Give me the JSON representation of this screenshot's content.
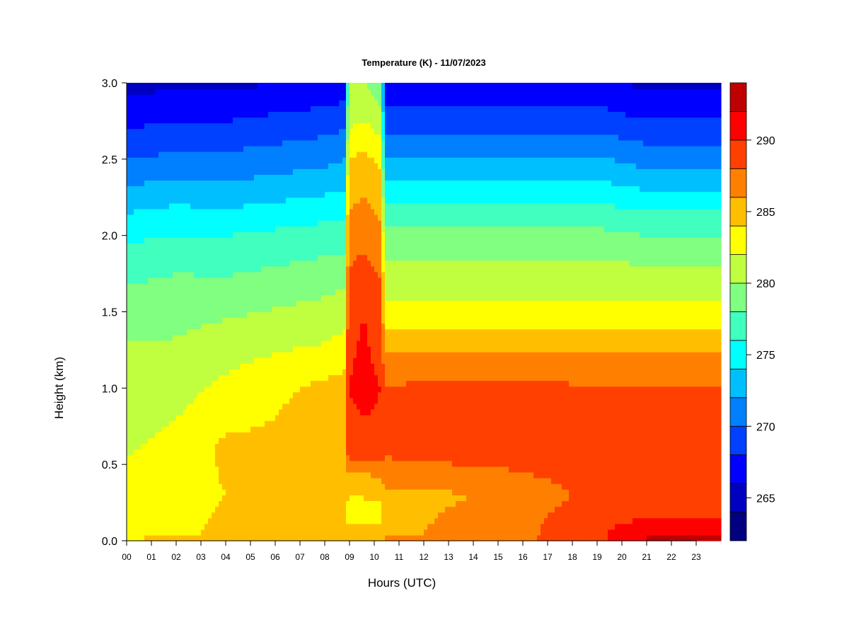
{
  "chart_data": {
    "type": "heatmap",
    "title": "Temperature (K) - 11/07/2023",
    "xlabel": "Hours (UTC)",
    "ylabel": "Height (km)",
    "xlim": [
      0,
      24
    ],
    "ylim": [
      0,
      3
    ],
    "x_ticks": [
      "00",
      "01",
      "02",
      "03",
      "04",
      "05",
      "06",
      "07",
      "08",
      "09",
      "10",
      "11",
      "12",
      "13",
      "14",
      "15",
      "16",
      "17",
      "18",
      "19",
      "20",
      "21",
      "22",
      "23"
    ],
    "y_ticks": [
      "0.0",
      "0.5",
      "1.0",
      "1.5",
      "2.0",
      "2.5",
      "3.0"
    ],
    "colorbar": {
      "range": [
        262,
        294
      ],
      "levels": [
        262,
        264,
        266,
        268,
        270,
        272,
        274,
        276,
        278,
        280,
        282,
        284,
        286,
        288,
        290,
        292,
        294
      ],
      "colors": [
        "#000080",
        "#0000bf",
        "#0000ff",
        "#0040ff",
        "#0080ff",
        "#00bfff",
        "#00ffff",
        "#40ffbf",
        "#80ff80",
        "#bfff40",
        "#ffff00",
        "#ffbf00",
        "#ff8000",
        "#ff4000",
        "#ff0000",
        "#bf0000",
        "#800000"
      ],
      "tick_labels": [
        "265",
        "270",
        "275",
        "280",
        "285",
        "290"
      ],
      "tick_values": [
        265,
        270,
        275,
        280,
        285,
        290
      ]
    },
    "profiles": [
      {
        "hour": 0,
        "heights": [
          0,
          0.05,
          0.3,
          0.8,
          1.2,
          1.6,
          1.9,
          2.2,
          2.5,
          2.8,
          3.0
        ],
        "temps": [
          284.5,
          283,
          282.5,
          281.5,
          280.5,
          278.5,
          276.5,
          273.5,
          270,
          267,
          265.5
        ]
      },
      {
        "hour": 2,
        "heights": [
          0,
          0.05,
          0.3,
          0.8,
          1.2,
          1.6,
          1.9,
          2.2,
          2.5,
          2.8,
          3.0
        ],
        "temps": [
          284.5,
          283.5,
          283,
          282,
          280.5,
          279,
          277,
          274,
          270.5,
          267.5,
          265.5
        ]
      },
      {
        "hour": 4,
        "heights": [
          0,
          0.05,
          0.3,
          0.6,
          1.0,
          1.3,
          1.6,
          2.0,
          2.4,
          2.8,
          3.0
        ],
        "temps": [
          285,
          284.5,
          284,
          284.5,
          282.5,
          281,
          279,
          276,
          271.5,
          267.5,
          265.5
        ]
      },
      {
        "hour": 6,
        "heights": [
          0,
          0.05,
          0.3,
          0.6,
          1.0,
          1.3,
          1.6,
          2.0,
          2.4,
          2.8,
          3.0
        ],
        "temps": [
          285,
          284.5,
          284,
          284.5,
          283.5,
          281.5,
          279.5,
          276.5,
          272,
          268,
          266
        ]
      },
      {
        "hour": 8,
        "heights": [
          0,
          0.05,
          0.3,
          0.6,
          1.0,
          1.3,
          1.6,
          2.0,
          2.4,
          2.8,
          3.0
        ],
        "temps": [
          285.5,
          285,
          284.5,
          286,
          284.5,
          282,
          280,
          277,
          272.5,
          268.5,
          266
        ]
      },
      {
        "hour": 8.85,
        "heights": [
          0,
          0.05,
          0.3,
          0.6,
          1.0,
          1.3,
          1.6,
          2.0,
          2.4,
          2.8,
          3.0
        ],
        "temps": [
          286,
          285,
          284.5,
          286,
          285,
          282.5,
          280.5,
          277,
          273,
          269,
          266.5
        ]
      },
      {
        "hour": 8.95,
        "heights": [
          0,
          0.2,
          0.45,
          0.6,
          1.0,
          1.5,
          2.0,
          2.5,
          2.8,
          3.0
        ],
        "temps": [
          285,
          283,
          286,
          289.5,
          290,
          289.5,
          287,
          284,
          281,
          280
        ]
      },
      {
        "hour": 9.6,
        "heights": [
          0,
          0.2,
          0.45,
          0.6,
          1.0,
          1.5,
          2.0,
          2.5,
          2.8,
          3.0
        ],
        "temps": [
          285,
          283,
          286,
          289.5,
          290.5,
          290,
          287.5,
          284.5,
          281.5,
          280
        ]
      },
      {
        "hour": 10.25,
        "heights": [
          0,
          0.2,
          0.45,
          0.6,
          1.0,
          1.5,
          2.0,
          2.5,
          2.8,
          3.0
        ],
        "temps": [
          285,
          283.5,
          286.5,
          289.5,
          290,
          289,
          286.5,
          283.5,
          280.5,
          278.5
        ]
      },
      {
        "hour": 10.45,
        "heights": [
          0,
          0.05,
          0.3,
          0.6,
          1.0,
          1.25,
          1.5,
          1.8,
          2.1,
          2.4,
          2.8,
          3.0
        ],
        "temps": [
          286.5,
          286,
          285.5,
          288.5,
          288,
          286,
          282.5,
          280.5,
          277.5,
          273.5,
          268.5,
          266.5
        ]
      },
      {
        "hour": 12,
        "heights": [
          0,
          0.05,
          0.3,
          0.6,
          1.0,
          1.25,
          1.5,
          1.8,
          2.1,
          2.4,
          2.8,
          3.0
        ],
        "temps": [
          286.5,
          286,
          285.5,
          289,
          288.5,
          286,
          282.5,
          280.5,
          277.5,
          273.5,
          268.5,
          266.5
        ]
      },
      {
        "hour": 14,
        "heights": [
          0,
          0.05,
          0.3,
          0.6,
          1.0,
          1.25,
          1.5,
          1.8,
          2.1,
          2.4,
          2.8,
          3.0
        ],
        "temps": [
          287.5,
          287,
          286,
          289,
          288.5,
          286,
          282.5,
          280.5,
          277.5,
          273.5,
          268.5,
          266.5
        ]
      },
      {
        "hour": 16,
        "heights": [
          0,
          0.05,
          0.3,
          0.6,
          1.0,
          1.25,
          1.5,
          1.8,
          2.1,
          2.4,
          2.8,
          3.0
        ],
        "temps": [
          287.5,
          287,
          287,
          289,
          288.5,
          286,
          282.5,
          280.5,
          277.5,
          273.5,
          268.5,
          266.5
        ]
      },
      {
        "hour": 17,
        "heights": [
          0,
          0.05,
          0.3,
          0.6,
          1.0,
          1.25,
          1.5,
          1.8,
          2.1,
          2.4,
          2.8,
          3.0
        ],
        "temps": [
          288.5,
          288.5,
          287.5,
          289,
          288.5,
          286,
          282.5,
          280.5,
          277.5,
          273.5,
          268.5,
          266.5
        ]
      },
      {
        "hour": 19,
        "heights": [
          0,
          0.05,
          0.3,
          0.6,
          1.0,
          1.25,
          1.5,
          1.8,
          2.1,
          2.4,
          2.8,
          3.0
        ],
        "temps": [
          289.5,
          289.5,
          288.5,
          288.5,
          288,
          286,
          282.5,
          280.5,
          277.5,
          273.5,
          268.5,
          266.5
        ]
      },
      {
        "hour": 21,
        "heights": [
          0,
          0.05,
          0.15,
          0.3,
          0.6,
          1.0,
          1.25,
          1.5,
          1.8,
          2.1,
          2.4,
          2.8,
          3.0
        ],
        "temps": [
          292,
          292,
          290,
          289.5,
          289.5,
          288,
          286,
          282.5,
          280,
          277,
          272.5,
          267.5,
          265.5
        ]
      },
      {
        "hour": 23.85,
        "heights": [
          0,
          0.05,
          0.15,
          0.3,
          0.6,
          1.0,
          1.25,
          1.5,
          1.8,
          2.1,
          2.4,
          2.8,
          3.0
        ],
        "temps": [
          292,
          292,
          290,
          289.5,
          289.5,
          288,
          286,
          282.5,
          280,
          277,
          272.5,
          267.5,
          265.5
        ]
      }
    ]
  }
}
